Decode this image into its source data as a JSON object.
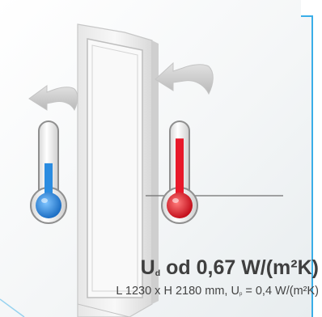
{
  "headline": {
    "u_symbol": "U",
    "u_subscript": "d",
    "value_text": " od 0,67 W/(m²K)"
  },
  "specs": {
    "size_text": "L 1230 x H 2180 mm, U",
    "u_subscript": "p",
    "value_text": " = 0,4 W/(m²K)"
  },
  "colors": {
    "cold": "#2b8ce0",
    "hot": "#e8182a",
    "text": "#404040",
    "accent_border": "#3aaee8"
  },
  "illustration": {
    "left_thermometer_level": 0.55,
    "right_thermometer_level": 0.85,
    "left_arrow_icon": "curved-arrow-left-icon",
    "right_arrow_icon": "curved-arrow-left-icon",
    "cold_thermometer_icon": "thermometer-cold-icon",
    "hot_thermometer_icon": "thermometer-hot-icon",
    "door_icon": "door-panel-icon"
  }
}
